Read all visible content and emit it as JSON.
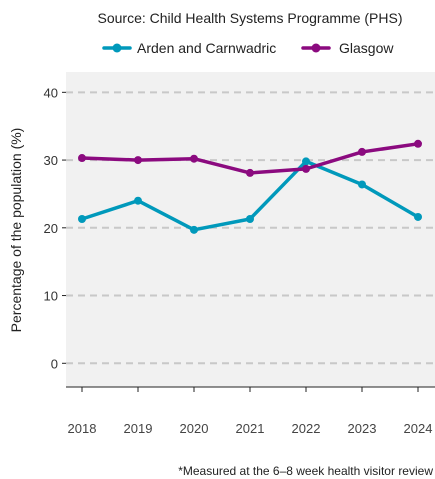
{
  "chart_data": {
    "type": "line",
    "subtitle": "Source: Child Health Systems Programme (PHS)",
    "ylabel": "Percentage of the population (%)",
    "xlabel": "",
    "caption": "*Measured at the 6–8 week health visitor review",
    "categories": [
      "2018",
      "2019",
      "2020",
      "2021",
      "2022",
      "2023",
      "2024"
    ],
    "ylim": [
      -3.5,
      43
    ],
    "yticks": [
      0,
      10,
      20,
      30,
      40
    ],
    "ytick_labels": [
      "0",
      "10",
      "20",
      "30",
      "40"
    ],
    "grid": "horizontal-dashed",
    "legend_position": "top",
    "series": [
      {
        "name": "Arden and Carnwadric",
        "color": "#0099bb",
        "values": [
          21.3,
          24.0,
          19.7,
          21.3,
          29.8,
          26.4,
          21.6
        ]
      },
      {
        "name": "Glasgow",
        "color": "#8b0a7f",
        "values": [
          30.3,
          30.0,
          30.2,
          28.1,
          28.7,
          31.2,
          32.4
        ]
      }
    ]
  }
}
